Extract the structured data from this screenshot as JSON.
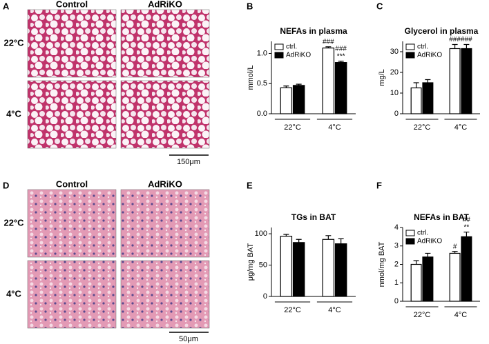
{
  "figure": {
    "panels": [
      "A",
      "B",
      "C",
      "D",
      "E",
      "F"
    ],
    "histology": [
      {
        "columns": [
          "Control",
          "AdRiKO"
        ],
        "rows": [
          "22°C",
          "4°C"
        ],
        "scale_bar": "150μm"
      },
      {
        "columns": [
          "Control",
          "AdRiKO"
        ],
        "rows": [
          "22°C",
          "4°C"
        ],
        "scale_bar": "50μm"
      }
    ]
  },
  "chart_data": [
    {
      "type": "bar",
      "title": "NEFAs in plasma",
      "ylabel": "mmol/L",
      "categories": [
        "22°C",
        "4°C"
      ],
      "ylim": [
        0,
        1.2
      ],
      "yticks": [
        {
          "value": 0,
          "label": "0.0"
        },
        {
          "value": 0.5,
          "label": "0.5"
        },
        {
          "value": 1,
          "label": "1.0"
        }
      ],
      "legend": "upper-left",
      "series": [
        {
          "name": "ctrl.",
          "color": "#ffffff",
          "values": [
            0.43,
            1.09
          ],
          "errors": [
            0.03,
            0.02
          ],
          "annotations": [
            [],
            [
              "###"
            ]
          ]
        },
        {
          "name": "AdRiKO",
          "color": "#000000",
          "values": [
            0.47,
            0.85
          ],
          "errors": [
            0.02,
            0.02
          ],
          "annotations": [
            [],
            [
              "###",
              "***"
            ]
          ]
        }
      ]
    },
    {
      "type": "bar",
      "title": "Glycerol in plasma",
      "ylabel": "mg/L",
      "categories": [
        "22°C",
        "4°C"
      ],
      "ylim": [
        0,
        35
      ],
      "yticks": [
        0,
        10,
        20,
        30
      ],
      "legend": "upper-left",
      "series": [
        {
          "name": "ctrl.",
          "color": "#ffffff",
          "values": [
            12.5,
            31.5
          ],
          "errors": [
            2.5,
            2
          ],
          "annotations": [
            [],
            [
              "###"
            ]
          ]
        },
        {
          "name": "AdRiKO",
          "color": "#000000",
          "values": [
            15,
            31.5
          ],
          "errors": [
            1.5,
            2
          ],
          "annotations": [
            [],
            [
              "###"
            ]
          ]
        }
      ]
    },
    {
      "type": "bar",
      "title": "TGs in BAT",
      "ylabel": "μg/mg BAT",
      "categories": [
        "22°C",
        "4°C"
      ],
      "ylim": [
        0,
        110
      ],
      "yticks": [
        0,
        50,
        100
      ],
      "series": [
        {
          "color": "#ffffff",
          "values": [
            96,
            91
          ],
          "errors": [
            3,
            6
          ]
        },
        {
          "color": "#000000",
          "values": [
            86,
            84
          ],
          "errors": [
            5,
            8
          ]
        }
      ]
    },
    {
      "type": "bar",
      "title": "NEFAs in BAT",
      "ylabel": "nmol/mg BAT",
      "categories": [
        "22°C",
        "4°C"
      ],
      "ylim": [
        0,
        4
      ],
      "yticks": [
        0,
        1,
        2,
        3,
        4
      ],
      "legend": "upper-left",
      "series": [
        {
          "name": "ctrl.",
          "color": "#ffffff",
          "values": [
            2.0,
            2.6
          ],
          "errors": [
            0.2,
            0.1
          ],
          "annotations": [
            [],
            [
              "#"
            ]
          ]
        },
        {
          "name": "AdRiKO",
          "color": "#000000",
          "values": [
            2.4,
            3.5
          ],
          "errors": [
            0.2,
            0.25
          ],
          "annotations": [
            [],
            [
              "##",
              "**"
            ]
          ]
        }
      ]
    }
  ]
}
